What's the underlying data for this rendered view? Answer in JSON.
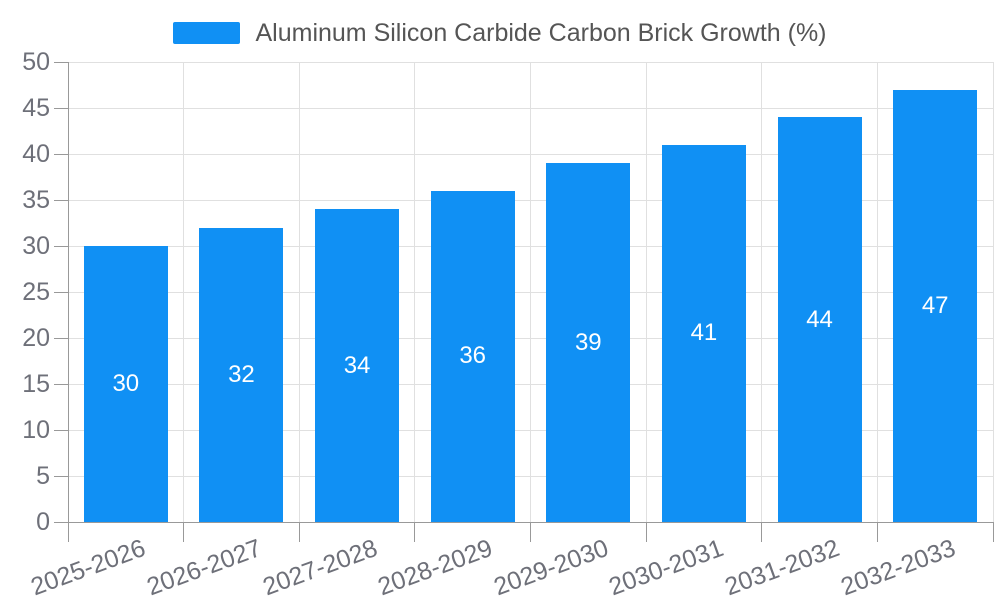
{
  "legend": {
    "label": "Aluminum Silicon Carbide Carbon Brick Growth (%)"
  },
  "chart_data": {
    "type": "bar",
    "title": "",
    "xlabel": "",
    "ylabel": "",
    "categories": [
      "2025-2026",
      "2026-2027",
      "2027-2028",
      "2028-2029",
      "2029-2030",
      "2030-2031",
      "2031-2032",
      "2032-2033"
    ],
    "series": [
      {
        "name": "Aluminum Silicon Carbide Carbon Brick Growth (%)",
        "values": [
          30,
          32,
          34,
          36,
          39,
          41,
          44,
          47
        ]
      }
    ],
    "value_labels_shown": true,
    "value_label_position": "inside-center",
    "ylim": [
      0,
      50
    ],
    "ytick_step": 5,
    "yticks": [
      0,
      5,
      10,
      15,
      20,
      25,
      30,
      35,
      40,
      45,
      50
    ],
    "grid": true,
    "legend_position": "top-center",
    "x_label_rotation_deg": 20,
    "colors": {
      "bar": "#1090f4",
      "value_label": "#ffffff",
      "axis_label": "#6e7079",
      "legend_text": "#555555",
      "grid_line": "#e0e0e0",
      "axis_line": "#999999",
      "background": "#ffffff"
    }
  }
}
